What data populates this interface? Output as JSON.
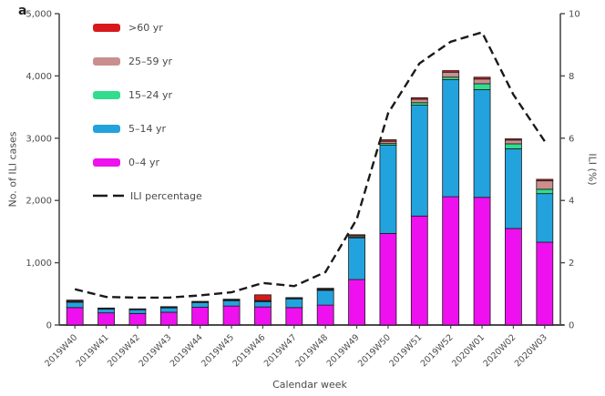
{
  "panel_label": "a",
  "axes": {
    "y_left": {
      "label": "No. of ILI cases",
      "ticks": [
        "0",
        "1,000",
        "2,000",
        "3,000",
        "4,000",
        "5,000"
      ],
      "min": 0,
      "max": 5000
    },
    "y_right": {
      "label": "ILI (%)",
      "ticks": [
        "0",
        "2",
        "4",
        "6",
        "8",
        "10"
      ],
      "min": 0,
      "max": 10
    },
    "x": {
      "label": "Calendar week"
    }
  },
  "colors": {
    "age_0_4": "#ee10ee",
    "age_5_14": "#22a3de",
    "age_15_24": "#30dd8e",
    "age_25_59": "#c98f8f",
    "age_over60": "#d7191c",
    "line": "#1a1a1a",
    "axis": "#4a4a4a",
    "bar_outline": "#1a1a1a"
  },
  "legend": [
    {
      "label": ">60 yr",
      "color": "#d7191c",
      "type": "box"
    },
    {
      "label": "25–59 yr",
      "color": "#c98f8f",
      "type": "box"
    },
    {
      "label": "15–24 yr",
      "color": "#30dd8e",
      "type": "box"
    },
    {
      "label": "5–14 yr",
      "color": "#22a3de",
      "type": "box"
    },
    {
      "label": "0–4 yr",
      "color": "#ee10ee",
      "type": "box"
    },
    {
      "label": "ILI percentage",
      "color": "#1a1a1a",
      "type": "dash"
    }
  ],
  "chart_data": {
    "type": "bar",
    "subtype": "stacked-bars-with-line",
    "title": "",
    "xlabel": "Calendar week",
    "ylabel_left": "No. of ILI cases",
    "ylabel_right": "ILI (%)",
    "ylim_left": [
      0,
      5000
    ],
    "ylim_right": [
      0,
      10
    ],
    "grid": false,
    "legend_position": "upper-left-inside",
    "categories": [
      "2019W40",
      "2019W41",
      "2019W42",
      "2019W43",
      "2019W44",
      "2019W45",
      "2019W46",
      "2019W47",
      "2019W48",
      "2019W49",
      "2019W50",
      "2019W51",
      "2019W52",
      "2020W01",
      "2020W02",
      "2020W03"
    ],
    "series": [
      {
        "name": "0–4 yr",
        "color": "#ee10ee",
        "values": [
          280,
          195,
          185,
          205,
          285,
          305,
          290,
          280,
          320,
          730,
          1470,
          1750,
          2060,
          2050,
          1550,
          1330
        ]
      },
      {
        "name": "5–14 yr",
        "color": "#22a3de",
        "values": [
          85,
          60,
          60,
          70,
          75,
          85,
          85,
          140,
          235,
          670,
          1420,
          1780,
          1880,
          1730,
          1280,
          780
        ]
      },
      {
        "name": "15–24 yr",
        "color": "#30dd8e",
        "values": [
          8,
          5,
          5,
          5,
          5,
          5,
          6,
          6,
          10,
          15,
          25,
          40,
          40,
          95,
          80,
          70
        ]
      },
      {
        "name": "25–59 yr",
        "color": "#c98f8f",
        "values": [
          12,
          5,
          5,
          8,
          8,
          8,
          12,
          8,
          12,
          20,
          35,
          55,
          80,
          75,
          60,
          135
        ]
      },
      {
        "name": ">60 yr",
        "color": "#d7191c",
        "values": [
          15,
          8,
          5,
          7,
          7,
          12,
          92,
          6,
          13,
          15,
          25,
          25,
          25,
          30,
          20,
          25
        ]
      }
    ],
    "line": {
      "name": "ILI percentage",
      "axis": "right",
      "color": "#1a1a1a",
      "style": "dashed",
      "values": [
        1.15,
        0.9,
        0.88,
        0.88,
        0.95,
        1.05,
        1.35,
        1.25,
        1.7,
        3.4,
        6.8,
        8.4,
        9.1,
        9.4,
        7.4,
        5.9
      ]
    }
  }
}
